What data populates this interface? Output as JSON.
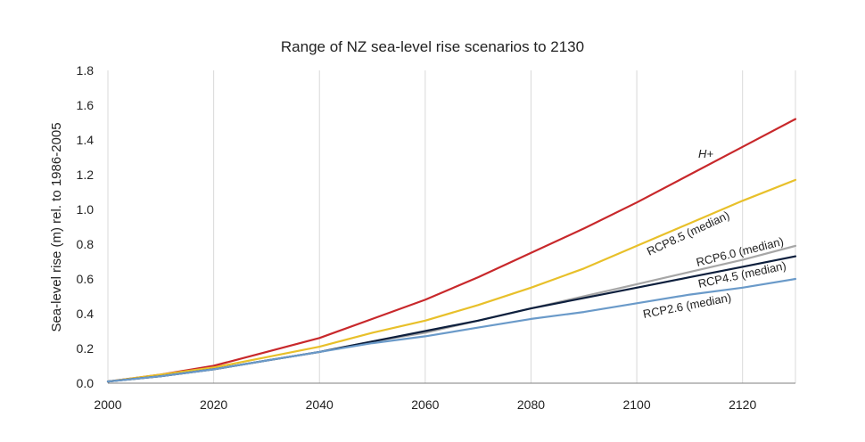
{
  "chart_data": {
    "type": "line",
    "title": "Range of NZ sea-level rise scenarios to 2130",
    "xlabel": "",
    "ylabel": "Sea-level rise (m) rel. to 1986-2005",
    "xlim": [
      2000,
      2130
    ],
    "ylim": [
      0,
      1.8
    ],
    "x_ticks": [
      "2000",
      "2020",
      "2040",
      "2060",
      "2080",
      "2100",
      "2120"
    ],
    "y_ticks": [
      "0.0",
      "0.2",
      "0.4",
      "0.6",
      "0.8",
      "1.0",
      "1.2",
      "1.4",
      "1.6",
      "1.8"
    ],
    "grid": "vertical",
    "x": [
      2000,
      2010,
      2020,
      2030,
      2040,
      2050,
      2060,
      2070,
      2080,
      2090,
      2100,
      2110,
      2120,
      2130
    ],
    "series": [
      {
        "name": "H+",
        "color": "#c8282b",
        "values": [
          0.01,
          0.05,
          0.1,
          0.18,
          0.26,
          0.37,
          0.48,
          0.61,
          0.75,
          0.89,
          1.04,
          1.2,
          1.36,
          1.52
        ]
      },
      {
        "name": "RCP8.5 (median)",
        "color": "#e8c02a",
        "values": [
          0.01,
          0.05,
          0.09,
          0.15,
          0.21,
          0.29,
          0.36,
          0.45,
          0.55,
          0.66,
          0.79,
          0.92,
          1.05,
          1.17
        ]
      },
      {
        "name": "RCP6.0 (median)",
        "color": "#a6a6a6",
        "values": [
          0.01,
          0.04,
          0.08,
          0.13,
          0.18,
          0.24,
          0.29,
          0.36,
          0.43,
          0.5,
          0.57,
          0.64,
          0.71,
          0.79
        ]
      },
      {
        "name": "RCP4.5 (median)",
        "color": "#0d1f3d",
        "values": [
          0.01,
          0.04,
          0.08,
          0.13,
          0.18,
          0.24,
          0.3,
          0.36,
          0.43,
          0.49,
          0.55,
          0.61,
          0.67,
          0.73
        ]
      },
      {
        "name": "RCP2.6 (median)",
        "color": "#6a9ac9",
        "values": [
          0.01,
          0.04,
          0.08,
          0.13,
          0.18,
          0.23,
          0.27,
          0.32,
          0.37,
          0.41,
          0.46,
          0.51,
          0.55,
          0.6
        ]
      }
    ],
    "annotations": [
      "H+",
      "RCP8.5 (median)",
      "RCP6.0 (median)",
      "RCP4.5 (median)",
      "RCP2.6 (median)"
    ]
  }
}
